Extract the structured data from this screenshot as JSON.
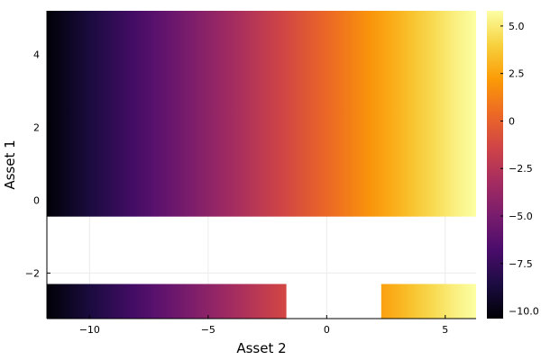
{
  "chart_data": {
    "type": "heatmap",
    "title": "",
    "xlabel": "Asset 2",
    "ylabel": "Asset 1",
    "xlim": [
      -11.8,
      6.3
    ],
    "ylim": [
      -3.25,
      5.2
    ],
    "x_ticks": [
      -10,
      -5,
      0,
      5
    ],
    "x_tick_labels": [
      "−10",
      "−5",
      "0",
      "5"
    ],
    "y_ticks": [
      -2,
      0,
      2,
      4
    ],
    "y_tick_labels": [
      "−2",
      "0",
      "2",
      "4"
    ],
    "grid": true,
    "colormap": "inferno",
    "colormap_stops": [
      "#000004",
      "#1b0c41",
      "#4a0c6b",
      "#781c6d",
      "#a52c60",
      "#cf4446",
      "#ed6925",
      "#fb9b06",
      "#f7d13d",
      "#fcffa4"
    ],
    "colorbar": {
      "range": [
        -10.4,
        5.8
      ],
      "ticks": [
        5.0,
        2.5,
        0,
        -2.5,
        -5.0,
        -7.5,
        -10.0
      ],
      "tick_labels": [
        "5.0",
        "2.5",
        "0",
        "−2.5",
        "−5.0",
        "−7.5",
        "−10.0"
      ],
      "position": "right"
    },
    "value_function": "approximately linear in Asset 2: value ≈ 0.9 × (Asset 2) + 0.3",
    "regions": [
      {
        "x": [
          -11.8,
          6.3
        ],
        "y": [
          -0.45,
          5.2
        ],
        "filled": true
      },
      {
        "x": [
          -11.8,
          -1.7
        ],
        "y": [
          -3.25,
          -2.3
        ],
        "filled": true
      },
      {
        "x": [
          2.3,
          6.3
        ],
        "y": [
          -3.25,
          -2.3
        ],
        "filled": true
      }
    ]
  }
}
